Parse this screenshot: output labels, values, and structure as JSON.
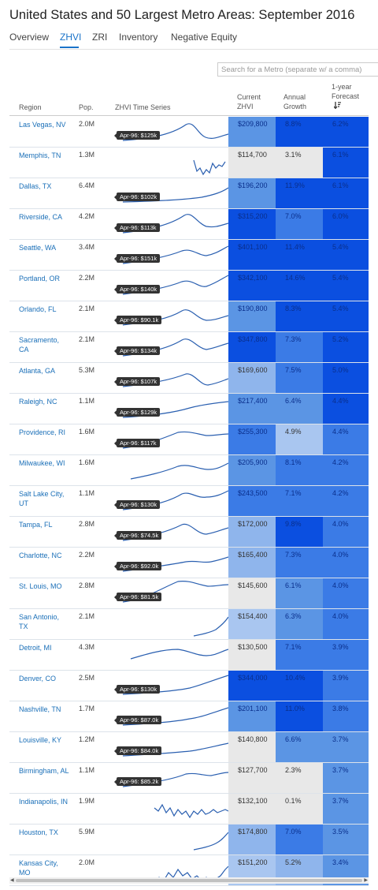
{
  "page": {
    "title": "United States and 50 Largest Metro Areas: September 2016"
  },
  "tabs": [
    {
      "label": "Overview",
      "active": false
    },
    {
      "label": "ZHVI",
      "active": true
    },
    {
      "label": "ZRI",
      "active": false
    },
    {
      "label": "Inventory",
      "active": false
    },
    {
      "label": "Negative Equity",
      "active": false
    }
  ],
  "search": {
    "placeholder": "Search for a Metro (separate w/ a comma)",
    "value": ""
  },
  "table": {
    "headers": {
      "region": "Region",
      "pop": "Pop.",
      "series": "ZHVI Time Series",
      "zhvi": "Current ZHVI",
      "growth": "Annual Growth",
      "forecast": "1-year Forecast"
    },
    "sort_icon": "sort-descending-icon",
    "colors": {
      "text_on_dark": "#0a2f8c",
      "text_on_light": "#333333",
      "link": "#1a6fb8"
    },
    "rows": [
      {
        "region": "Las Vegas, NV",
        "pop": "2.0M",
        "tag": "Apr-96: $125k",
        "zhvi": "$209,800",
        "growth": "8.8%",
        "forecast": "6.2%",
        "zc": "#5b95e4",
        "gc": "#0b4fe0",
        "fc": "#0b4fe0"
      },
      {
        "region": "Memphis, TN",
        "pop": "1.3M",
        "tag": "",
        "zhvi": "$114,700",
        "growth": "3.1%",
        "forecast": "6.1%",
        "zc": "#e8e8e8",
        "gc": "#e8e8e8",
        "fc": "#0b4fe0"
      },
      {
        "region": "Dallas, TX",
        "pop": "6.4M",
        "tag": "Apr-96: $102k",
        "zhvi": "$196,200",
        "growth": "11.9%",
        "forecast": "6.1%",
        "zc": "#5b95e4",
        "gc": "#0b4fe0",
        "fc": "#0b4fe0"
      },
      {
        "region": "Riverside, CA",
        "pop": "4.2M",
        "tag": "Apr-96: $113k",
        "zhvi": "$315,200",
        "growth": "7.0%",
        "forecast": "6.0%",
        "zc": "#0b4fe0",
        "gc": "#3b7be6",
        "fc": "#0b4fe0"
      },
      {
        "region": "Seattle, WA",
        "pop": "3.4M",
        "tag": "Apr-96: $151k",
        "zhvi": "$401,100",
        "growth": "11.4%",
        "forecast": "5.4%",
        "zc": "#0b4fe0",
        "gc": "#0b4fe0",
        "fc": "#0b4fe0"
      },
      {
        "region": "Portland, OR",
        "pop": "2.2M",
        "tag": "Apr-96: $140k",
        "zhvi": "$342,100",
        "growth": "14.6%",
        "forecast": "5.4%",
        "zc": "#0b4fe0",
        "gc": "#0b4fe0",
        "fc": "#0b4fe0"
      },
      {
        "region": "Orlando, FL",
        "pop": "2.1M",
        "tag": "Apr-96: $90.1k",
        "zhvi": "$190,800",
        "growth": "8.3%",
        "forecast": "5.4%",
        "zc": "#5b95e4",
        "gc": "#0b4fe0",
        "fc": "#0b4fe0"
      },
      {
        "region": "Sacramento, CA",
        "pop": "2.1M",
        "tag": "Apr-96: $134k",
        "zhvi": "$347,800",
        "growth": "7.3%",
        "forecast": "5.2%",
        "zc": "#0b4fe0",
        "gc": "#3b7be6",
        "fc": "#0b4fe0"
      },
      {
        "region": "Atlanta, GA",
        "pop": "5.3M",
        "tag": "Apr-96: $107k",
        "zhvi": "$169,600",
        "growth": "7.5%",
        "forecast": "5.0%",
        "zc": "#8fb5ec",
        "gc": "#3b7be6",
        "fc": "#0b4fe0"
      },
      {
        "region": "Raleigh, NC",
        "pop": "1.1M",
        "tag": "Apr-96: $129k",
        "zhvi": "$217,400",
        "growth": "6.4%",
        "forecast": "4.4%",
        "zc": "#5b95e4",
        "gc": "#5b95e4",
        "fc": "#0b4fe0"
      },
      {
        "region": "Providence, RI",
        "pop": "1.6M",
        "tag": "Apr-96: $117k",
        "zhvi": "$255,300",
        "growth": "4.9%",
        "forecast": "4.4%",
        "zc": "#3b7be6",
        "gc": "#a9c6f0",
        "fc": "#3b7be6"
      },
      {
        "region": "Milwaukee, WI",
        "pop": "1.6M",
        "tag": "",
        "zhvi": "$205,900",
        "growth": "8.1%",
        "forecast": "4.2%",
        "zc": "#5b95e4",
        "gc": "#3b7be6",
        "fc": "#3b7be6"
      },
      {
        "region": "Salt Lake City, UT",
        "pop": "1.1M",
        "tag": "Apr-96: $130k",
        "zhvi": "$243,500",
        "growth": "7.1%",
        "forecast": "4.2%",
        "zc": "#3b7be6",
        "gc": "#3b7be6",
        "fc": "#3b7be6"
      },
      {
        "region": "Tampa, FL",
        "pop": "2.8M",
        "tag": "Apr-96: $74.5k",
        "zhvi": "$172,000",
        "growth": "9.8%",
        "forecast": "4.0%",
        "zc": "#8fb5ec",
        "gc": "#0b4fe0",
        "fc": "#3b7be6"
      },
      {
        "region": "Charlotte, NC",
        "pop": "2.2M",
        "tag": "Apr-96: $92.0k",
        "zhvi": "$165,400",
        "growth": "7.3%",
        "forecast": "4.0%",
        "zc": "#8fb5ec",
        "gc": "#3b7be6",
        "fc": "#3b7be6"
      },
      {
        "region": "St. Louis, MO",
        "pop": "2.8M",
        "tag": "Apr-96: $81.5k",
        "zhvi": "$145,600",
        "growth": "6.1%",
        "forecast": "4.0%",
        "zc": "#e8e8e8",
        "gc": "#5b95e4",
        "fc": "#3b7be6"
      },
      {
        "region": "San Antonio, TX",
        "pop": "2.1M",
        "tag": "",
        "zhvi": "$154,400",
        "growth": "6.3%",
        "forecast": "4.0%",
        "zc": "#a9c6f0",
        "gc": "#5b95e4",
        "fc": "#3b7be6"
      },
      {
        "region": "Detroit, MI",
        "pop": "4.3M",
        "tag": "",
        "zhvi": "$130,500",
        "growth": "7.1%",
        "forecast": "3.9%",
        "zc": "#e8e8e8",
        "gc": "#3b7be6",
        "fc": "#3b7be6"
      },
      {
        "region": "Denver, CO",
        "pop": "2.5M",
        "tag": "Apr-96: $130k",
        "zhvi": "$344,000",
        "growth": "10.4%",
        "forecast": "3.9%",
        "zc": "#0b4fe0",
        "gc": "#0b4fe0",
        "fc": "#3b7be6"
      },
      {
        "region": "Nashville, TN",
        "pop": "1.7M",
        "tag": "Apr-96: $87.0k",
        "zhvi": "$201,100",
        "growth": "11.0%",
        "forecast": "3.8%",
        "zc": "#5b95e4",
        "gc": "#0b4fe0",
        "fc": "#3b7be6"
      },
      {
        "region": "Louisville, KY",
        "pop": "1.2M",
        "tag": "Apr-96: $84.0k",
        "zhvi": "$140,800",
        "growth": "6.6%",
        "forecast": "3.7%",
        "zc": "#e8e8e8",
        "gc": "#5b95e4",
        "fc": "#5b95e4"
      },
      {
        "region": "Birmingham, AL",
        "pop": "1.1M",
        "tag": "Apr-96: $85.2k",
        "zhvi": "$127,700",
        "growth": "2.3%",
        "forecast": "3.7%",
        "zc": "#e8e8e8",
        "gc": "#e8e8e8",
        "fc": "#5b95e4"
      },
      {
        "region": "Indianapolis, IN",
        "pop": "1.9M",
        "tag": "",
        "zhvi": "$132,100",
        "growth": "0.1%",
        "forecast": "3.7%",
        "zc": "#e8e8e8",
        "gc": "#e8e8e8",
        "fc": "#5b95e4"
      },
      {
        "region": "Houston, TX",
        "pop": "5.9M",
        "tag": "",
        "zhvi": "$174,800",
        "growth": "7.0%",
        "forecast": "3.5%",
        "zc": "#8fb5ec",
        "gc": "#3b7be6",
        "fc": "#5b95e4"
      },
      {
        "region": "Kansas City, MO",
        "pop": "2.0M",
        "tag": "",
        "zhvi": "$151,200",
        "growth": "5.2%",
        "forecast": "3.4%",
        "zc": "#a9c6f0",
        "gc": "#8fb5ec",
        "fc": "#5b95e4"
      }
    ]
  }
}
